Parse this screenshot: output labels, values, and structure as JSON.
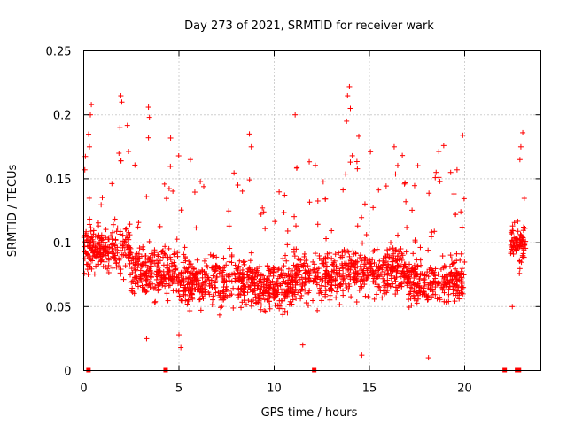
{
  "chart_data": {
    "type": "scatter",
    "title": "Day 273 of 2021, SRMTID for receiver wark",
    "xlabel": "GPS time / hours",
    "ylabel": "SRMTID / TECUs",
    "xlim": [
      0,
      24
    ],
    "ylim": [
      0,
      0.25
    ],
    "x_ticks": [
      0,
      5,
      10,
      15,
      20
    ],
    "y_ticks": [
      0,
      0.05,
      0.1,
      0.15,
      0.2,
      0.25
    ],
    "x_tick_labels": [
      "0",
      "5",
      "10",
      "15",
      "20"
    ],
    "y_tick_labels": [
      "0",
      "0.05",
      "0.1",
      "0.15",
      "0.2",
      "0.25"
    ],
    "grid": true,
    "marker": "+",
    "series_color": "#ff0000",
    "series": [
      {
        "name": "SRMTID",
        "description": "Dense scatter of SRMTID values, mostly between 0.03 and 0.13 TECU with occasional spikes up to ~0.22; data present 0-20 h and 22.4-23.2 h.",
        "segments": [
          {
            "x_start": 0.0,
            "x_end": 20.0,
            "typical_min": 0.03,
            "typical_max": 0.13
          },
          {
            "x_start": 22.4,
            "x_end": 23.2,
            "typical_min": 0.05,
            "typical_max": 0.18
          }
        ],
        "notable_points": [
          {
            "x": 0.4,
            "y": 0.208
          },
          {
            "x": 0.35,
            "y": 0.2
          },
          {
            "x": 0.3,
            "y": 0.175
          },
          {
            "x": 1.95,
            "y": 0.215
          },
          {
            "x": 2.0,
            "y": 0.21
          },
          {
            "x": 1.9,
            "y": 0.19
          },
          {
            "x": 1.85,
            "y": 0.17
          },
          {
            "x": 3.4,
            "y": 0.206
          },
          {
            "x": 3.45,
            "y": 0.198
          },
          {
            "x": 3.4,
            "y": 0.182
          },
          {
            "x": 3.3,
            "y": 0.025
          },
          {
            "x": 5.0,
            "y": 0.028
          },
          {
            "x": 5.1,
            "y": 0.018
          },
          {
            "x": 5.6,
            "y": 0.165
          },
          {
            "x": 8.7,
            "y": 0.185
          },
          {
            "x": 8.8,
            "y": 0.175
          },
          {
            "x": 11.1,
            "y": 0.2
          },
          {
            "x": 11.5,
            "y": 0.02
          },
          {
            "x": 13.95,
            "y": 0.222
          },
          {
            "x": 13.85,
            "y": 0.215
          },
          {
            "x": 14.0,
            "y": 0.205
          },
          {
            "x": 13.8,
            "y": 0.195
          },
          {
            "x": 14.1,
            "y": 0.168
          },
          {
            "x": 14.0,
            "y": 0.163
          },
          {
            "x": 14.6,
            "y": 0.012
          },
          {
            "x": 16.3,
            "y": 0.175
          },
          {
            "x": 18.1,
            "y": 0.01
          },
          {
            "x": 18.5,
            "y": 0.155
          },
          {
            "x": 18.7,
            "y": 0.148
          },
          {
            "x": 18.9,
            "y": 0.176
          },
          {
            "x": 19.6,
            "y": 0.157
          },
          {
            "x": 19.9,
            "y": 0.184
          },
          {
            "x": 22.95,
            "y": 0.175
          },
          {
            "x": 23.05,
            "y": 0.186
          },
          {
            "x": 22.9,
            "y": 0.165
          },
          {
            "x": 22.5,
            "y": 0.05
          }
        ]
      }
    ],
    "gap_markers_x": [
      0.25,
      4.3,
      12.1,
      22.1,
      22.75,
      22.85
    ]
  }
}
